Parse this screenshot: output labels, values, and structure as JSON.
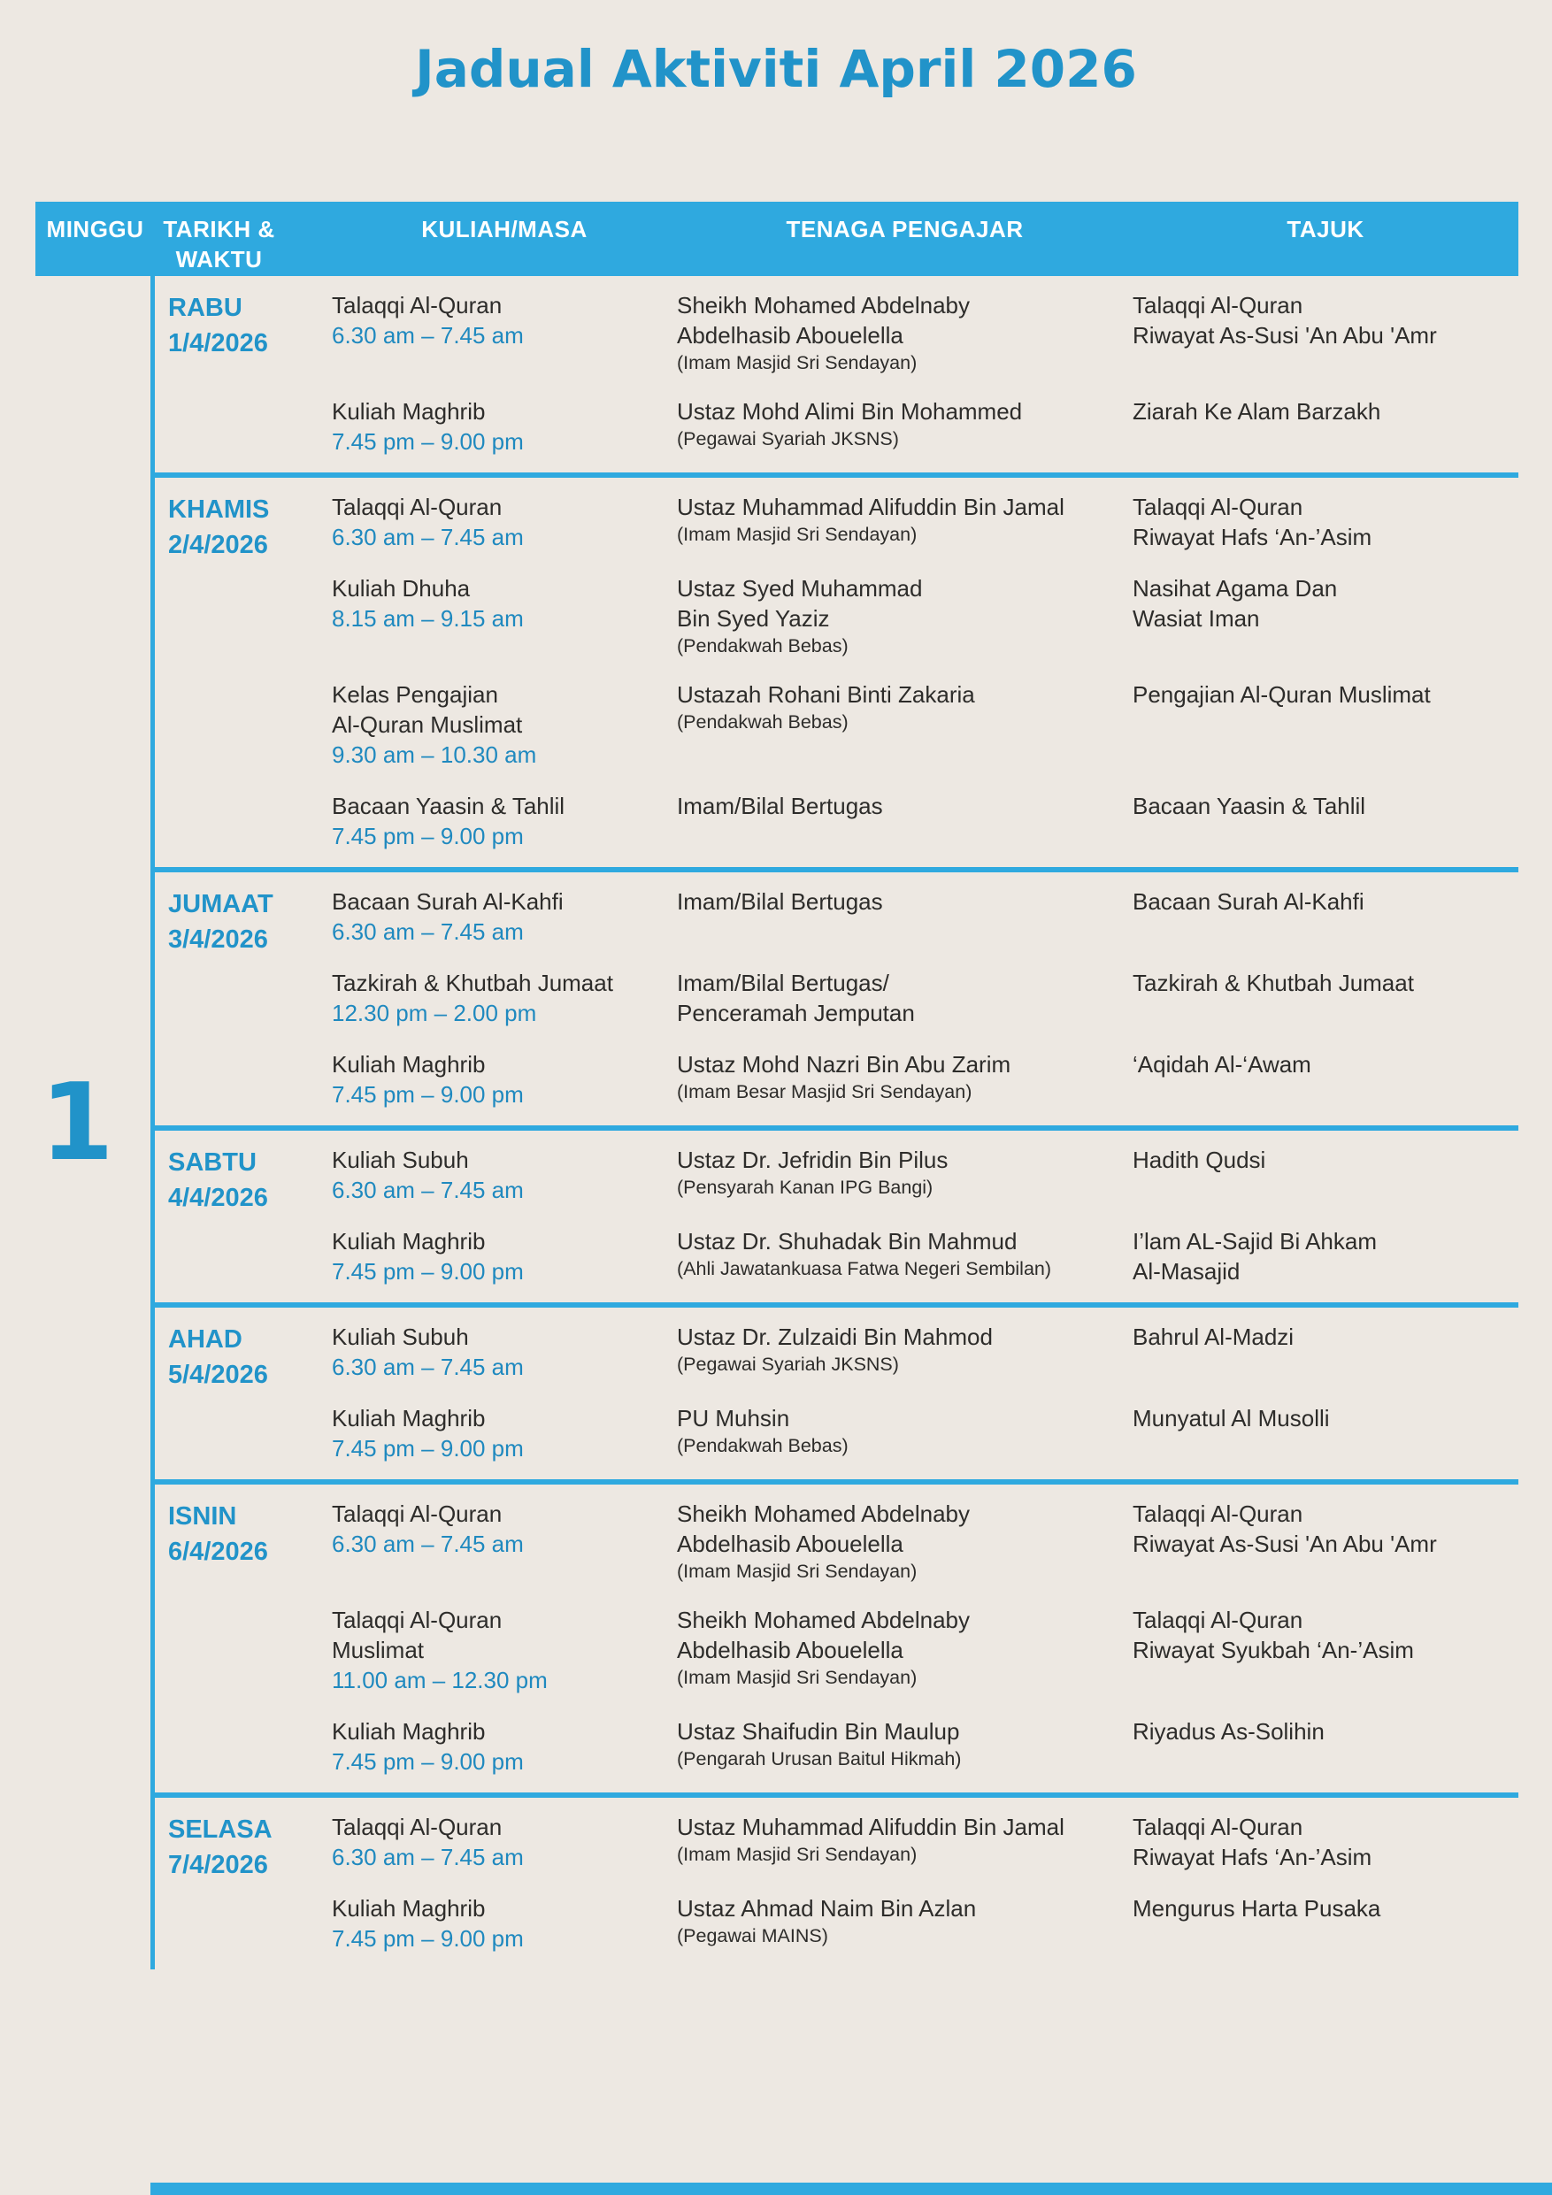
{
  "title": "Jadual Aktiviti April 2026",
  "colors": {
    "background": "#EDE8E2",
    "accent_blue": "#2FA9DF",
    "heading_blue": "#2193C9",
    "time_blue": "#1F89BF",
    "body_text": "#2D2C2A",
    "header_text": "#FFFFFF"
  },
  "header": {
    "minggu": "MINGGU",
    "tarikh_waktu": "TARIKH &\nWAKTU",
    "kuliah_masa": "KULIAH/MASA",
    "tenaga_pengajar": "TENAGA PENGAJAR",
    "tajuk": "TAJUK"
  },
  "week": {
    "number": "1",
    "days": [
      {
        "day": "RABU",
        "date": "1/4/2026",
        "activities": [
          {
            "kuliah": "Talaqqi Al-Quran",
            "masa": "6.30 am – 7.45 am",
            "tenaga": "Sheikh Mohamed Abdelnaby\nAbdelhasib Abouelella",
            "note": "(Imam Masjid Sri Sendayan)",
            "tajuk": "Talaqqi Al-Quran\nRiwayat As-Susi 'An Abu 'Amr"
          },
          {
            "kuliah": "Kuliah Maghrib",
            "masa": "7.45 pm – 9.00 pm",
            "tenaga": "Ustaz Mohd Alimi Bin Mohammed",
            "note": "(Pegawai Syariah JKSNS)",
            "tajuk": "Ziarah Ke Alam Barzakh"
          }
        ]
      },
      {
        "day": "KHAMIS",
        "date": "2/4/2026",
        "activities": [
          {
            "kuliah": "Talaqqi Al-Quran",
            "masa": "6.30 am – 7.45 am",
            "tenaga": "Ustaz Muhammad Alifuddin Bin Jamal",
            "note": "(Imam Masjid Sri Sendayan)",
            "tajuk": "Talaqqi Al-Quran\nRiwayat Hafs ‘An-’Asim"
          },
          {
            "kuliah": "Kuliah Dhuha",
            "masa": "8.15 am – 9.15 am",
            "tenaga": "Ustaz Syed Muhammad\nBin Syed Yaziz",
            "note": "(Pendakwah Bebas)",
            "tajuk": "Nasihat Agama Dan\nWasiat Iman"
          },
          {
            "kuliah": "Kelas Pengajian\nAl-Quran Muslimat",
            "masa": "9.30 am – 10.30 am",
            "tenaga": "Ustazah Rohani Binti Zakaria",
            "note": "(Pendakwah Bebas)",
            "tajuk": "Pengajian Al-Quran Muslimat"
          },
          {
            "kuliah": "Bacaan Yaasin & Tahlil",
            "masa": "7.45 pm – 9.00 pm",
            "tenaga": "Imam/Bilal Bertugas",
            "note": "",
            "tajuk": "Bacaan Yaasin & Tahlil"
          }
        ]
      },
      {
        "day": "JUMAAT",
        "date": "3/4/2026",
        "activities": [
          {
            "kuliah": "Bacaan Surah Al-Kahfi",
            "masa": "6.30 am – 7.45 am",
            "tenaga": "Imam/Bilal Bertugas",
            "note": "",
            "tajuk": "Bacaan Surah Al-Kahfi"
          },
          {
            "kuliah": "Tazkirah & Khutbah Jumaat",
            "masa": "12.30 pm – 2.00 pm",
            "tenaga": "Imam/Bilal Bertugas/\nPenceramah Jemputan",
            "note": "",
            "tajuk": "Tazkirah & Khutbah Jumaat"
          },
          {
            "kuliah": "Kuliah Maghrib",
            "masa": "7.45 pm – 9.00 pm",
            "tenaga": "Ustaz Mohd Nazri Bin Abu Zarim",
            "note": "(Imam Besar Masjid Sri Sendayan)",
            "tajuk": "‘Aqidah Al-‘Awam"
          }
        ]
      },
      {
        "day": "SABTU",
        "date": "4/4/2026",
        "activities": [
          {
            "kuliah": "Kuliah Subuh",
            "masa": "6.30 am – 7.45 am",
            "tenaga": "Ustaz Dr. Jefridin Bin Pilus",
            "note": "(Pensyarah Kanan IPG Bangi)",
            "tajuk": "Hadith Qudsi"
          },
          {
            "kuliah": "Kuliah Maghrib",
            "masa": "7.45 pm – 9.00 pm",
            "tenaga": "Ustaz Dr. Shuhadak Bin Mahmud",
            "note": "(Ahli Jawatankuasa Fatwa Negeri Sembilan)",
            "tajuk": "I’lam AL-Sajid Bi Ahkam\nAl-Masajid"
          }
        ]
      },
      {
        "day": "AHAD",
        "date": "5/4/2026",
        "activities": [
          {
            "kuliah": "Kuliah Subuh",
            "masa": "6.30 am – 7.45 am",
            "tenaga": "Ustaz Dr. Zulzaidi Bin Mahmod",
            "note": "(Pegawai Syariah JKSNS)",
            "tajuk": "Bahrul Al-Madzi"
          },
          {
            "kuliah": "Kuliah Maghrib",
            "masa": "7.45 pm – 9.00 pm",
            "tenaga": "PU Muhsin",
            "note": "(Pendakwah Bebas)",
            "tajuk": "Munyatul Al Musolli"
          }
        ]
      },
      {
        "day": "ISNIN",
        "date": "6/4/2026",
        "activities": [
          {
            "kuliah": "Talaqqi Al-Quran",
            "masa": "6.30 am – 7.45 am",
            "tenaga": "Sheikh Mohamed Abdelnaby\nAbdelhasib Abouelella",
            "note": "(Imam Masjid Sri Sendayan)",
            "tajuk": "Talaqqi Al-Quran\nRiwayat As-Susi 'An Abu 'Amr"
          },
          {
            "kuliah": "Talaqqi Al-Quran\nMuslimat",
            "masa": "11.00 am – 12.30 pm",
            "tenaga": "Sheikh Mohamed Abdelnaby\nAbdelhasib Abouelella",
            "note": "(Imam Masjid Sri Sendayan)",
            "tajuk": "Talaqqi Al-Quran\nRiwayat Syukbah ‘An-’Asim"
          },
          {
            "kuliah": "Kuliah Maghrib",
            "masa": "7.45 pm – 9.00 pm",
            "tenaga": "Ustaz Shaifudin Bin Maulup",
            "note": "(Pengarah Urusan Baitul Hikmah)",
            "tajuk": "Riyadus As-Solihin"
          }
        ]
      },
      {
        "day": "SELASA",
        "date": "7/4/2026",
        "activities": [
          {
            "kuliah": "Talaqqi Al-Quran",
            "masa": "6.30 am – 7.45 am",
            "tenaga": "Ustaz Muhammad Alifuddin Bin Jamal",
            "note": "(Imam Masjid Sri Sendayan)",
            "tajuk": "Talaqqi Al-Quran\nRiwayat Hafs ‘An-’Asim"
          },
          {
            "kuliah": "Kuliah Maghrib",
            "masa": "7.45 pm – 9.00 pm",
            "tenaga": "Ustaz Ahmad Naim Bin Azlan",
            "note": "(Pegawai MAINS)",
            "tajuk": "Mengurus Harta Pusaka"
          }
        ]
      }
    ]
  }
}
